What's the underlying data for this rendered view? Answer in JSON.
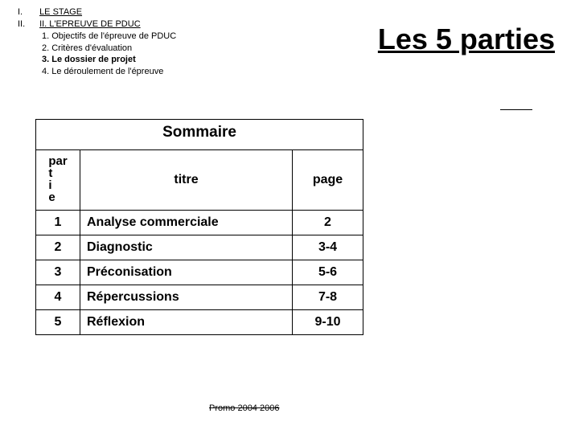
{
  "outline": {
    "i": "I.",
    "i_text": "LE STAGE",
    "ii": "II.",
    "ii_text": "II. L'EPREUVE DE PDUC",
    "ii_1": "1. Objectifs de l'épreuve de PDUC",
    "ii_2": "2. Critères d'évaluation",
    "ii_3": "3. Le dossier de projet",
    "ii_4": "4. Le déroulement de l'épreuve"
  },
  "title": "Les 5 parties",
  "sommaire": {
    "heading": "Sommaire",
    "head_part": "par\nt\ni\ne",
    "head_titre": "titre",
    "head_page": "page",
    "rows": [
      {
        "n": "1",
        "t": "Analyse commerciale",
        "p": "2"
      },
      {
        "n": "2",
        "t": "Diagnostic",
        "p": "3-4"
      },
      {
        "n": "3",
        "t": "Préconisation",
        "p": "5-6"
      },
      {
        "n": "4",
        "t": "Répercussions",
        "p": "7-8"
      },
      {
        "n": "5",
        "t": "Réflexion",
        "p": "9-10"
      }
    ]
  },
  "footer": "Promo 2004 2006"
}
